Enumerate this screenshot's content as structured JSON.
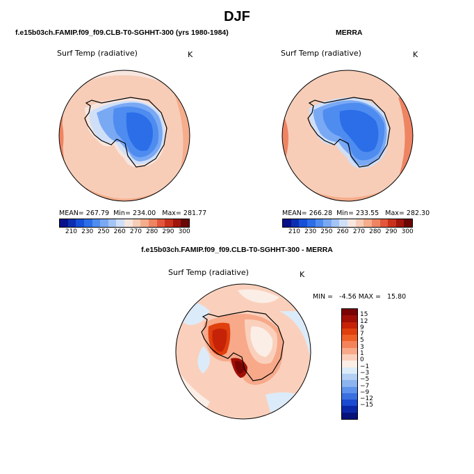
{
  "title": "DJF",
  "panels": [
    {
      "title": "f.e15b03ch.FAMIP.f09_f09.CLB-T0-SGHHT-300 (yrs 1980-1984)",
      "field": "Surf Temp (radiative)",
      "unit": "K",
      "mean_label": "MEAN=",
      "mean": "267.79",
      "min_label": "Min=",
      "min": "234.00",
      "max_label": "Max=",
      "max": "281.77"
    },
    {
      "title": "MERRA",
      "field": "Surf Temp (radiative)",
      "unit": "K",
      "mean_label": "MEAN=",
      "mean": "266.28",
      "min_label": "Min=",
      "min": "233.55",
      "max_label": "Max=",
      "max": "282.30"
    }
  ],
  "colorbar": {
    "ticks": [
      "210",
      "230",
      "250",
      "260",
      "270",
      "280",
      "290",
      "300"
    ],
    "colors": [
      "#08108a",
      "#0b2fb0",
      "#1650d8",
      "#2b6ee8",
      "#4f8cf0",
      "#7aa9f4",
      "#a5c4f6",
      "#cfdff8",
      "#f7e6df",
      "#f7cdb8",
      "#f5ad8c",
      "#ef8462",
      "#e2573b",
      "#c8321d",
      "#9f160c",
      "#6a0606"
    ]
  },
  "diff": {
    "title": "f.e15b03ch.FAMIP.f09_f09.CLB-T0-SGHHT-300 - MERRA",
    "field": "Surf Temp (radiative)",
    "unit": "K",
    "stats": "MIN =   -4.56 MAX =   15.80",
    "colorbar": {
      "ticks": [
        "15",
        "12",
        "9",
        "7",
        "5",
        "3",
        "1",
        "0",
        "−1",
        "−3",
        "−5",
        "−7",
        "−9",
        "−12",
        "−15"
      ],
      "colors": [
        "#7a0303",
        "#a00f06",
        "#c62208",
        "#e0400e",
        "#ef6027",
        "#f5835a",
        "#f7a98a",
        "#fad0bc",
        "#fbeee6",
        "#dcebf9",
        "#b3cff4",
        "#8cb4ef",
        "#5f92ea",
        "#3a6fe0",
        "#1a4bd0",
        "#0a27a8",
        "#06127a"
      ]
    }
  }
}
